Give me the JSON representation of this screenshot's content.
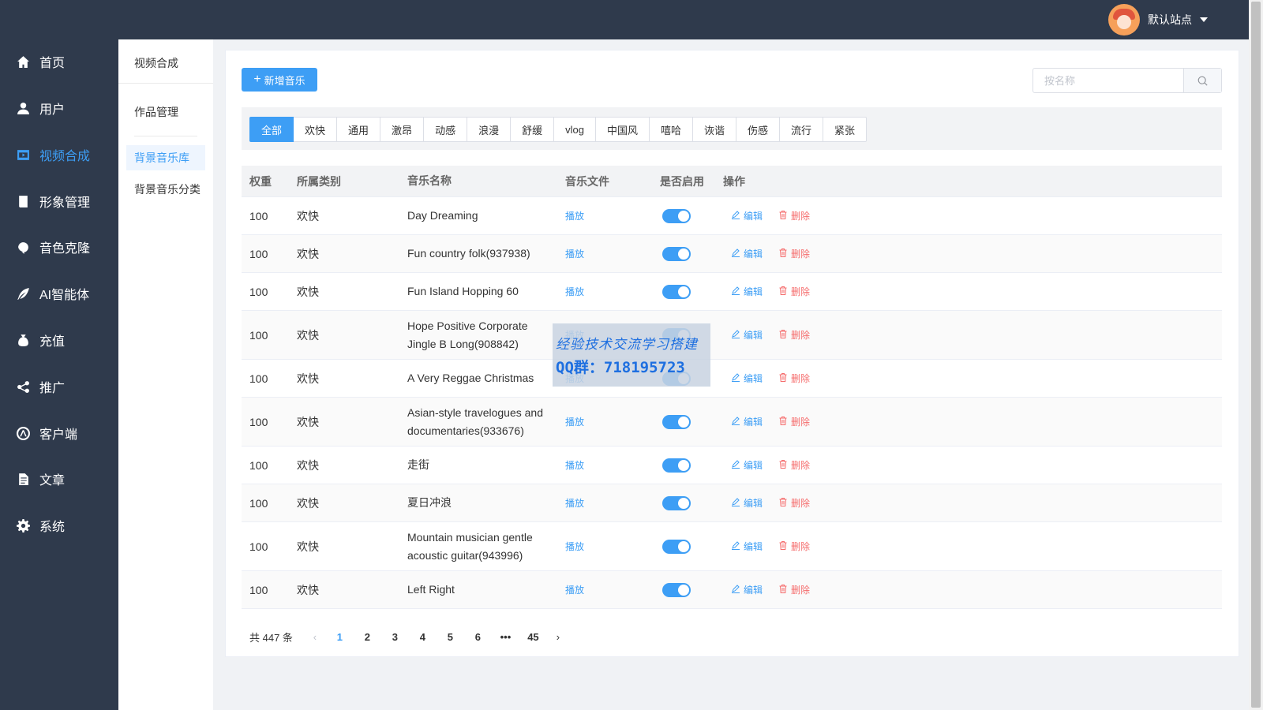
{
  "header": {
    "site_name": "默认站点"
  },
  "sidebar": {
    "items": [
      {
        "label": "首页",
        "icon": "home-icon"
      },
      {
        "label": "用户",
        "icon": "user-icon"
      },
      {
        "label": "视频合成",
        "icon": "video-icon",
        "active": true
      },
      {
        "label": "形象管理",
        "icon": "book-icon"
      },
      {
        "label": "音色克隆",
        "icon": "voice-icon"
      },
      {
        "label": "AI智能体",
        "icon": "feather-icon"
      },
      {
        "label": "充值",
        "icon": "money-bag-icon"
      },
      {
        "label": "推广",
        "icon": "share-icon"
      },
      {
        "label": "客户端",
        "icon": "app-store-icon"
      },
      {
        "label": "文章",
        "icon": "document-icon"
      },
      {
        "label": "系统",
        "icon": "gear-icon"
      }
    ]
  },
  "subnav": {
    "title": "视频合成",
    "group": "作品管理",
    "links": [
      {
        "label": "背景音乐库",
        "active": true
      },
      {
        "label": "背景音乐分类"
      }
    ]
  },
  "toolbar": {
    "add_label": "新增音乐",
    "search_placeholder": "按名称"
  },
  "category_tabs": [
    "全部",
    "欢快",
    "通用",
    "激昂",
    "动感",
    "浪漫",
    "舒缓",
    "vlog",
    "中国风",
    "嘻哈",
    "诙谐",
    "伤感",
    "流行",
    "紧张"
  ],
  "active_tab": 0,
  "table": {
    "headers": [
      "权重",
      "所属类别",
      "音乐名称",
      "音乐文件",
      "是否启用",
      "操作"
    ],
    "play_label": "播放",
    "edit_label": "编辑",
    "delete_label": "删除",
    "rows": [
      {
        "weight": "100",
        "category": "欢快",
        "name": "Day Dreaming",
        "enabled": true
      },
      {
        "weight": "100",
        "category": "欢快",
        "name": "Fun country folk(937938)",
        "enabled": true
      },
      {
        "weight": "100",
        "category": "欢快",
        "name": "Fun Island Hopping 60",
        "enabled": true
      },
      {
        "weight": "100",
        "category": "欢快",
        "name": "Hope Positive Corporate Jingle B Long(908842)",
        "enabled": true
      },
      {
        "weight": "100",
        "category": "欢快",
        "name": "A Very Reggae Christmas",
        "enabled": true
      },
      {
        "weight": "100",
        "category": "欢快",
        "name": "Asian-style travelogues and documentaries(933676)",
        "enabled": true
      },
      {
        "weight": "100",
        "category": "欢快",
        "name": "走街",
        "enabled": true
      },
      {
        "weight": "100",
        "category": "欢快",
        "name": "夏日冲浪",
        "enabled": true
      },
      {
        "weight": "100",
        "category": "欢快",
        "name": "Mountain musician gentle acoustic guitar(943996)",
        "enabled": true
      },
      {
        "weight": "100",
        "category": "欢快",
        "name": "Left Right",
        "enabled": true
      }
    ]
  },
  "pagination": {
    "total_text": "共 447 条",
    "pages": [
      "1",
      "2",
      "3",
      "4",
      "5",
      "6",
      "•••",
      "45"
    ],
    "current": "1"
  },
  "watermark": {
    "line1": "经验技术交流学习搭建",
    "line2": "QQ群：718195723"
  },
  "colors": {
    "primary": "#3d9ef5",
    "sidebar_bg": "#2f3a4c",
    "danger": "#f56c6c"
  }
}
